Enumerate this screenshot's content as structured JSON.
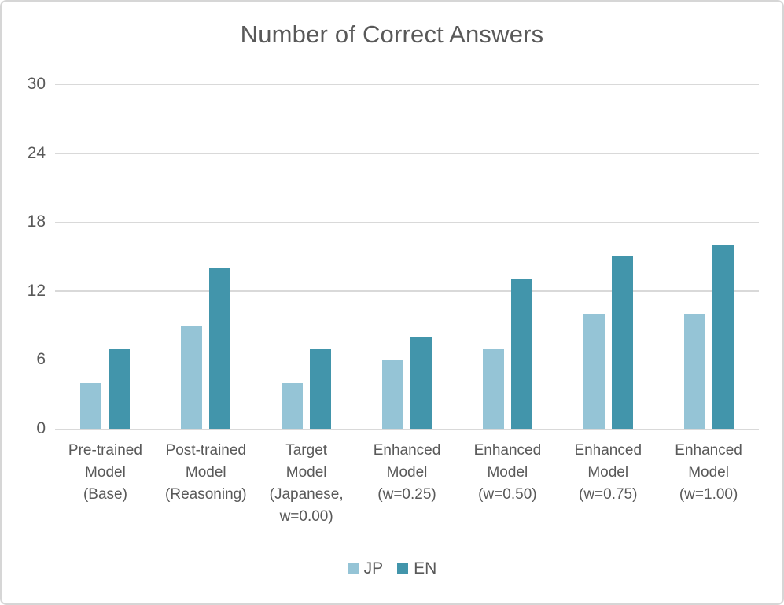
{
  "chart_data": {
    "type": "bar",
    "title": "Number of Correct Answers",
    "categories": [
      "Pre-trained\nModel\n(Base)",
      "Post-trained\nModel\n(Reasoning)",
      "Target\nModel\n(Japanese,\nw=0.00)",
      "Enhanced\nModel\n(w=0.25)",
      "Enhanced\nModel\n(w=0.50)",
      "Enhanced\nModel\n(w=0.75)",
      "Enhanced\nModel\n(w=1.00)"
    ],
    "series": [
      {
        "name": "JP",
        "color": "#95c4d6",
        "values": [
          4,
          9,
          4,
          6,
          7,
          10,
          10
        ]
      },
      {
        "name": "EN",
        "color": "#4295ab",
        "values": [
          7,
          14,
          7,
          8,
          13,
          15,
          16
        ]
      }
    ],
    "xlabel": "",
    "ylabel": "",
    "ylim": [
      0,
      30
    ],
    "yticks": [
      0,
      6,
      12,
      18,
      24,
      30
    ],
    "grid": true,
    "legend_position": "bottom"
  },
  "colors": {
    "grid": "#d9d9d9",
    "text": "#595959",
    "frame_border": "#d6d6d6",
    "background": "#ffffff"
  }
}
